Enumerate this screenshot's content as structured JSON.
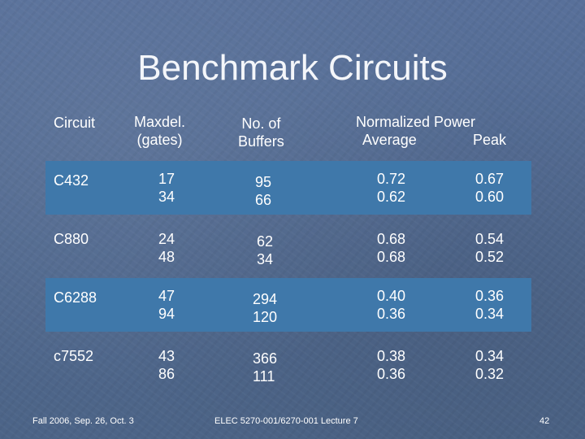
{
  "title": "Benchmark Circuits",
  "headers": {
    "circuit": "Circuit",
    "maxdel_1": "Maxdel.",
    "maxdel_2": "(gates)",
    "buffers_1": "No. of",
    "buffers_2": "Buffers",
    "power_1": "Normalized Power",
    "power_avg": "Average",
    "power_peak": "Peak"
  },
  "rows": [
    {
      "circuit": "C432",
      "maxdel": [
        "17",
        "34"
      ],
      "buffers": [
        "95",
        "66"
      ],
      "average": [
        "0.72",
        "0.62"
      ],
      "peak": [
        "0.67",
        "0.60"
      ]
    },
    {
      "circuit": "C880",
      "maxdel": [
        "24",
        "48"
      ],
      "buffers": [
        "62",
        "34"
      ],
      "average": [
        "0.68",
        "0.68"
      ],
      "peak": [
        "0.54",
        "0.52"
      ]
    },
    {
      "circuit": "C6288",
      "maxdel": [
        "47",
        "94"
      ],
      "buffers": [
        "294",
        "120"
      ],
      "average": [
        "0.40",
        "0.36"
      ],
      "peak": [
        "0.36",
        "0.34"
      ]
    },
    {
      "circuit": "c7552",
      "maxdel": [
        "43",
        "86"
      ],
      "buffers": [
        "366",
        "111"
      ],
      "average": [
        "0.38",
        "0.36"
      ],
      "peak": [
        "0.34",
        "0.32"
      ]
    }
  ],
  "footer": {
    "left": "Fall 2006, Sep. 26, Oct. 3",
    "center": "ELEC 5270-001/6270-001 Lecture 7",
    "page": "42"
  },
  "colors": {
    "band": "#3f78aa",
    "background": "#4f6787"
  }
}
